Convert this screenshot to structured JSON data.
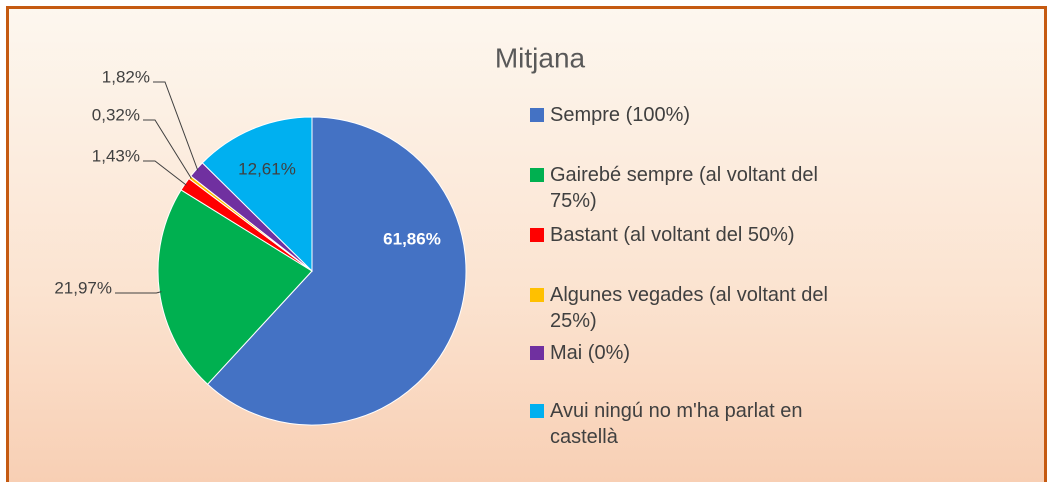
{
  "chart_data": {
    "type": "pie",
    "title": "Mitjana",
    "categories": [
      "Sempre (100%)",
      "Gairebé sempre (al voltant del 75%)",
      "Bastant (al voltant del 50%)",
      "Algunes vegades (al voltant del 25%)",
      "Mai (0%)",
      "Avui ningú no m'ha parlat en castellà"
    ],
    "values": [
      61.86,
      21.97,
      1.43,
      0.32,
      1.82,
      12.61
    ],
    "value_labels": [
      "61,86%",
      "21,97%",
      "1,43%",
      "0,32%",
      "1,82%",
      "12,61%"
    ],
    "colors": [
      "#4472c4",
      "#00b050",
      "#ff0000",
      "#ffc000",
      "#7030a0",
      "#00b0f0"
    ]
  }
}
